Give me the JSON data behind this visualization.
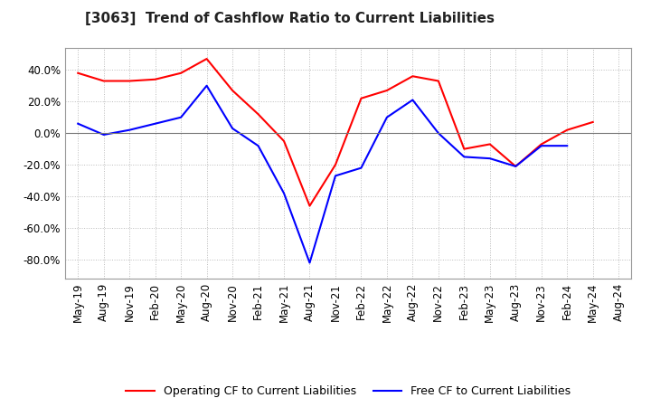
{
  "title": "[3063]  Trend of Cashflow Ratio to Current Liabilities",
  "x_labels": [
    "May-19",
    "Aug-19",
    "Nov-19",
    "Feb-20",
    "May-20",
    "Aug-20",
    "Nov-20",
    "Feb-21",
    "May-21",
    "Aug-21",
    "Nov-21",
    "Feb-22",
    "May-22",
    "Aug-22",
    "Nov-22",
    "Feb-23",
    "May-23",
    "Aug-23",
    "Nov-23",
    "Feb-24",
    "May-24",
    "Aug-24"
  ],
  "operating_cf": [
    0.38,
    0.33,
    0.33,
    0.34,
    0.38,
    0.47,
    0.27,
    0.12,
    -0.05,
    -0.46,
    -0.2,
    0.22,
    0.27,
    0.36,
    0.33,
    -0.1,
    -0.07,
    -0.21,
    -0.07,
    0.02,
    0.07,
    null
  ],
  "free_cf": [
    0.06,
    -0.01,
    0.02,
    0.06,
    0.1,
    0.3,
    0.03,
    -0.08,
    -0.38,
    -0.82,
    -0.27,
    -0.22,
    0.1,
    0.21,
    0.0,
    -0.15,
    -0.16,
    -0.21,
    -0.08,
    -0.08,
    null,
    null
  ],
  "operating_color": "#ff0000",
  "free_color": "#0000ff",
  "background_color": "#ffffff",
  "plot_bg_color": "#ffffff",
  "ylim_min": -0.92,
  "ylim_max": 0.54,
  "yticks": [
    -0.8,
    -0.6,
    -0.4,
    -0.2,
    0.0,
    0.2,
    0.4
  ],
  "legend_op": "Operating CF to Current Liabilities",
  "legend_free": "Free CF to Current Liabilities",
  "grid_color": "#bbbbbb",
  "title_fontsize": 11,
  "tick_fontsize": 8.5,
  "legend_fontsize": 9,
  "line_width": 1.5
}
